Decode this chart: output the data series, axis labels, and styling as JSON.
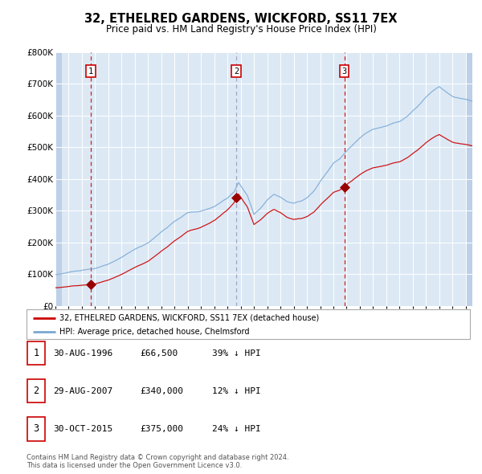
{
  "title": "32, ETHELRED GARDENS, WICKFORD, SS11 7EX",
  "subtitle": "Price paid vs. HM Land Registry's House Price Index (HPI)",
  "plot_bg_color": "#dce9f5",
  "hatch_color": "#bdd0e8",
  "red_line_color": "#cc0000",
  "blue_line_color": "#7aa8d4",
  "sales": [
    {
      "date_num": 1996.66,
      "price": 66500,
      "label": "1"
    },
    {
      "date_num": 2007.66,
      "price": 340000,
      "label": "2"
    },
    {
      "date_num": 2015.83,
      "price": 375000,
      "label": "3"
    }
  ],
  "legend_entries": [
    "32, ETHELRED GARDENS, WICKFORD, SS11 7EX (detached house)",
    "HPI: Average price, detached house, Chelmsford"
  ],
  "table_data": [
    [
      "1",
      "30-AUG-1996",
      "£66,500",
      "39% ↓ HPI"
    ],
    [
      "2",
      "29-AUG-2007",
      "£340,000",
      "12% ↓ HPI"
    ],
    [
      "3",
      "30-OCT-2015",
      "£375,000",
      "24% ↓ HPI"
    ]
  ],
  "footer": "Contains HM Land Registry data © Crown copyright and database right 2024.\nThis data is licensed under the Open Government Licence v3.0.",
  "ylim": [
    0,
    800000
  ],
  "yticks": [
    0,
    100000,
    200000,
    300000,
    400000,
    500000,
    600000,
    700000,
    800000
  ],
  "ytick_labels": [
    "£0",
    "£100K",
    "£200K",
    "£300K",
    "£400K",
    "£500K",
    "£600K",
    "£700K",
    "£800K"
  ],
  "xmin": 1994.0,
  "xmax": 2025.5
}
